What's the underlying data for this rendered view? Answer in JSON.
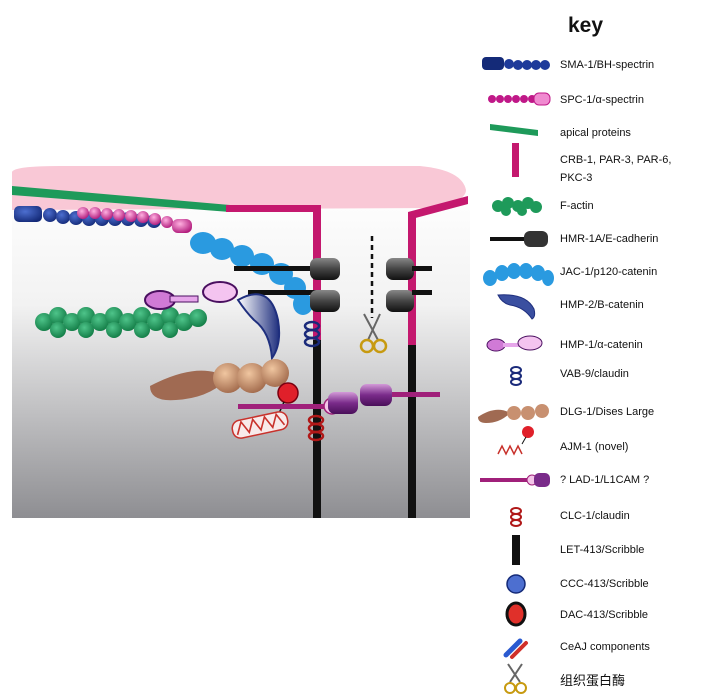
{
  "key": {
    "title": "key",
    "items": [
      {
        "id": "sma1",
        "label": "SMA-1/BH-spectrin",
        "icon": "blue-bead-chain-icon"
      },
      {
        "id": "spc1",
        "label": "SPC-1/α-spectrin",
        "icon": "magenta-bead-chain-icon"
      },
      {
        "id": "apical",
        "label": "apical proteins",
        "icon": "green-bar-icon"
      },
      {
        "id": "crb1",
        "label": "CRB-1, PAR-3, PAR-6,",
        "label2": "PKC-3",
        "icon": "magenta-bar-icon"
      },
      {
        "id": "factin",
        "label": "F-actin",
        "icon": "green-bead-cluster-icon"
      },
      {
        "id": "hmr1",
        "label": "HMR-1A/E-cadherin",
        "icon": "black-rod-cylinder-icon"
      },
      {
        "id": "jac1",
        "label": "JAC-1/p120-catenin",
        "icon": "blue-arc-chain-icon"
      },
      {
        "id": "hmp2",
        "label": "HMP-2/B-catenin",
        "icon": "blue-crescent-icon"
      },
      {
        "id": "hmp1",
        "label": "HMP-1/α-catenin",
        "icon": "purple-dumbbell-icon"
      },
      {
        "id": "vab9",
        "label": "VAB-9/claudin",
        "icon": "navy-coil-icon"
      },
      {
        "id": "dlg1",
        "label": "DLG-1/Dises Large",
        "icon": "brown-bead-chain-icon"
      },
      {
        "id": "ajm1",
        "label": "AJM-1 (novel)",
        "icon": "red-helix-ball-icon"
      },
      {
        "id": "lad1",
        "label": "? LAD-1/L1CAM ?",
        "icon": "magenta-rod-cylinder-icon"
      },
      {
        "id": "clc1",
        "label": "CLC-1/claudin",
        "icon": "red-coil-icon"
      },
      {
        "id": "let413",
        "label": "LET-413/Scribble",
        "icon": "black-bar-icon"
      },
      {
        "id": "ccc",
        "label": "CCC-413/Scribble",
        "icon": "blue-sphere-icon"
      },
      {
        "id": "dac",
        "label": "DAC-413/Scribble",
        "icon": "red-ring-icon"
      },
      {
        "id": "ceaj",
        "label": "CeAJ components",
        "icon": "red-blue-bars-icon"
      },
      {
        "id": "protease",
        "label": "组织蛋白酶",
        "icon": "scissors-icon"
      }
    ]
  }
}
